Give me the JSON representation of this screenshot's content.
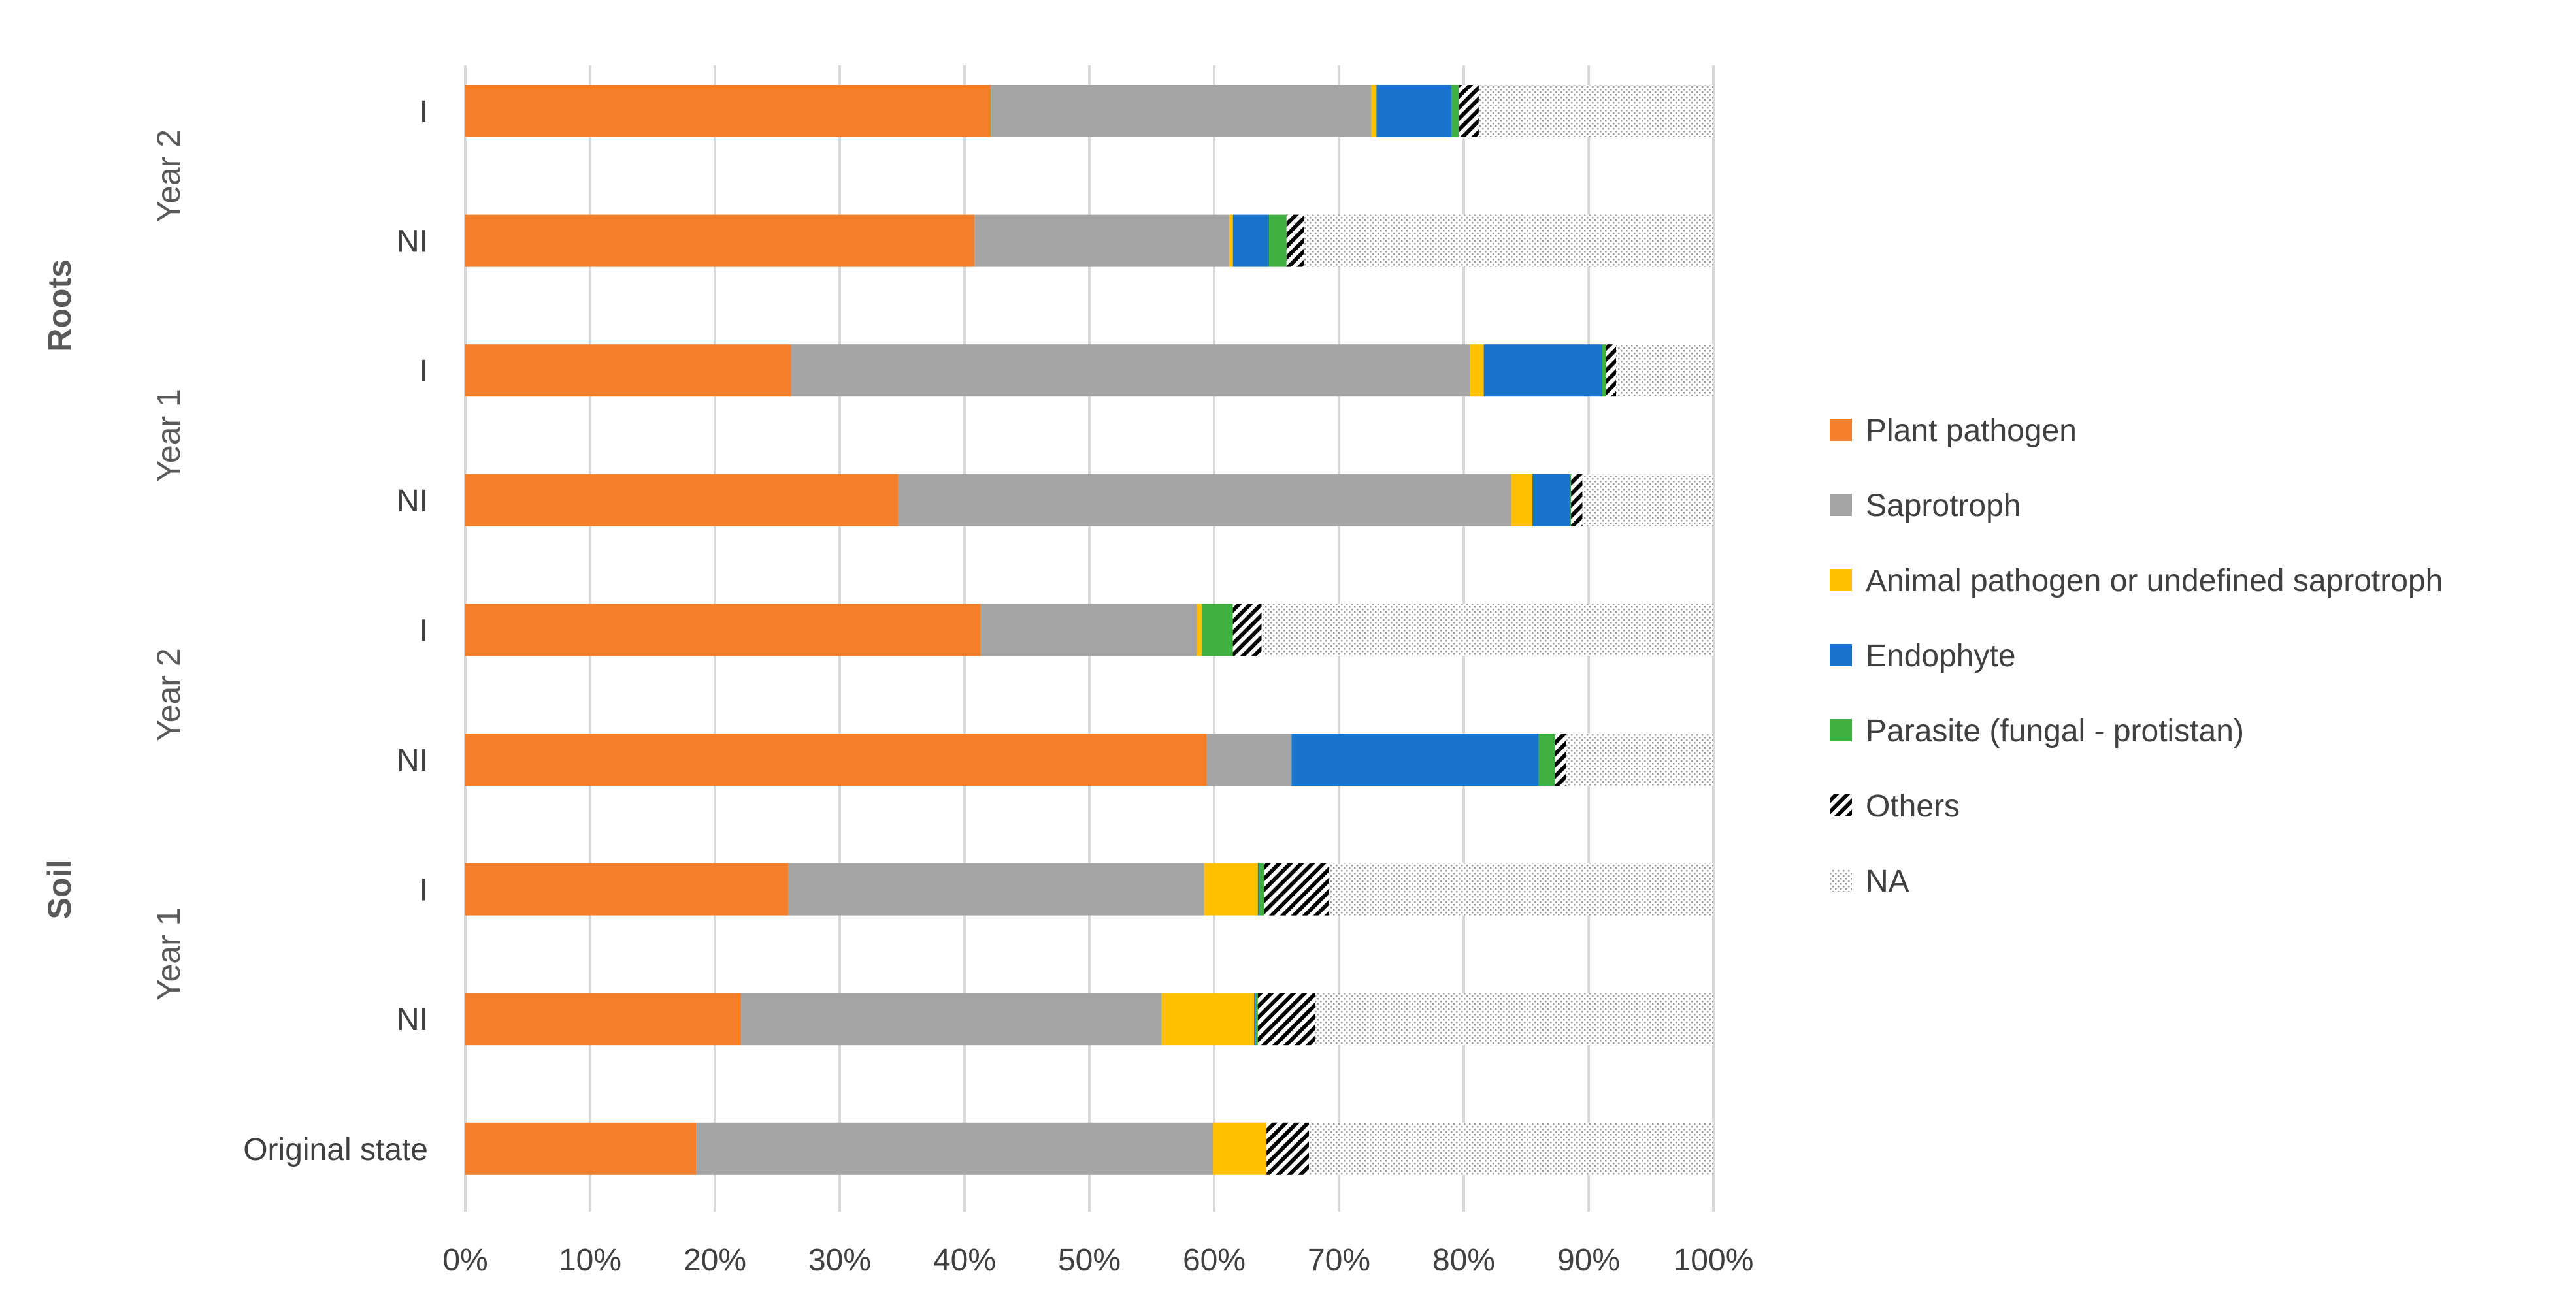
{
  "chart_data": {
    "type": "bar",
    "orientation": "horizontal",
    "stacked": "percent",
    "title": "",
    "xlabel": "",
    "ylabel": "",
    "xlim": [
      0,
      100
    ],
    "x_ticks": [
      "0%",
      "10%",
      "20%",
      "30%",
      "40%",
      "50%",
      "60%",
      "70%",
      "80%",
      "90%",
      "100%"
    ],
    "grid": true,
    "legend_position": "right",
    "categories": [
      {
        "label": "I",
        "group": "Year 2",
        "sample": "Roots"
      },
      {
        "label": "NI",
        "group": "Year 2",
        "sample": "Roots"
      },
      {
        "label": "I",
        "group": "Year 1",
        "sample": "Roots"
      },
      {
        "label": "NI",
        "group": "Year 1",
        "sample": "Roots"
      },
      {
        "label": "I",
        "group": "Year 2",
        "sample": "Soil"
      },
      {
        "label": "NI",
        "group": "Year 2",
        "sample": "Soil"
      },
      {
        "label": "I",
        "group": "Year 1",
        "sample": "Soil"
      },
      {
        "label": "NI",
        "group": "Year 1",
        "sample": "Soil"
      },
      {
        "label": "Original state",
        "group": "",
        "sample": "Soil"
      }
    ],
    "groups": [
      {
        "label": "Year 2",
        "first": 0,
        "last": 1
      },
      {
        "label": "Year 1",
        "first": 2,
        "last": 3
      },
      {
        "label": "Year 2",
        "first": 4,
        "last": 5
      },
      {
        "label": "Year 1",
        "first": 6,
        "last": 7
      }
    ],
    "outer_groups": [
      {
        "label": "Roots",
        "first": 0,
        "last": 3
      },
      {
        "label": "Soil",
        "first": 4,
        "last": 8
      }
    ],
    "series": [
      {
        "name": "Plant pathogen",
        "color": "#F47F2B",
        "pattern": "solid",
        "values": [
          42.1,
          40.8,
          26.1,
          34.7,
          41.3,
          59.4,
          25.9,
          22.1,
          18.5
        ]
      },
      {
        "name": "Saprotroph",
        "color": "#A5A5A5",
        "pattern": "solid",
        "values": [
          30.5,
          20.4,
          54.4,
          49.1,
          17.3,
          6.8,
          33.3,
          33.7,
          41.4
        ]
      },
      {
        "name": "Animal pathogen or undefined saprotroph",
        "color": "#FFC000",
        "pattern": "solid",
        "values": [
          0.4,
          0.3,
          1.1,
          1.7,
          0.4,
          0.0,
          4.3,
          7.4,
          4.3
        ]
      },
      {
        "name": "Endophyte",
        "color": "#1874CD",
        "pattern": "solid",
        "values": [
          6.0,
          2.9,
          9.5,
          3.0,
          0.0,
          19.8,
          0.1,
          0.1,
          0.0
        ]
      },
      {
        "name": "Parasite (fungal - protistan)",
        "color": "#3FAF3F",
        "pattern": "solid",
        "values": [
          0.6,
          1.4,
          0.3,
          0.1,
          2.5,
          1.3,
          0.4,
          0.2,
          0.0
        ]
      },
      {
        "name": "Others",
        "color": "#000000",
        "pattern": "hatch",
        "values": [
          1.6,
          1.4,
          0.8,
          0.9,
          2.3,
          0.9,
          5.2,
          4.6,
          3.4
        ]
      },
      {
        "name": "NA",
        "color": "#BFBFBF",
        "pattern": "dots",
        "values": [
          18.8,
          32.8,
          7.8,
          10.5,
          36.2,
          11.8,
          30.8,
          31.9,
          32.4
        ]
      }
    ]
  }
}
